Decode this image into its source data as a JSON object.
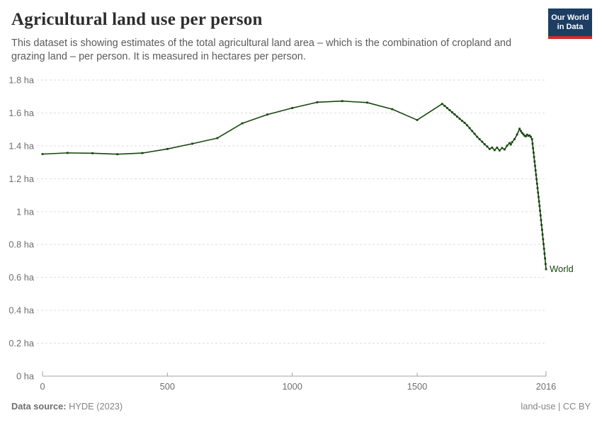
{
  "header": {
    "title": "Agricultural land use per person",
    "subtitle": "This dataset is showing estimates of the total agricultural land area – which is the combination of cropland and grazing land – per person. It is measured in hectares per person.",
    "logo": {
      "line1": "Our World",
      "line2": "in Data",
      "bg_color": "#1d3d63",
      "stripe_color": "#cf2c2c"
    }
  },
  "chart_data": {
    "type": "line",
    "title": "Agricultural land use per person",
    "unit": "hectares per person",
    "xlim": [
      0,
      2016
    ],
    "ylim": [
      0,
      1.8
    ],
    "grid": "horizontal-dashed",
    "grid_color": "#dddddd",
    "axis_color": "#a3a3a3",
    "x_ticks": [
      {
        "v": 0,
        "label": "0"
      },
      {
        "v": 500,
        "label": "500"
      },
      {
        "v": 1000,
        "label": "1000"
      },
      {
        "v": 1500,
        "label": "1500"
      },
      {
        "v": 2016,
        "label": "2016"
      }
    ],
    "y_ticks": [
      {
        "v": 0,
        "label": "0 ha"
      },
      {
        "v": 0.2,
        "label": "0.2 ha"
      },
      {
        "v": 0.4,
        "label": "0.4 ha"
      },
      {
        "v": 0.6,
        "label": "0.6 ha"
      },
      {
        "v": 0.8,
        "label": "0.8 ha"
      },
      {
        "v": 1,
        "label": "1 ha"
      },
      {
        "v": 1.2,
        "label": "1.2 ha"
      },
      {
        "v": 1.4,
        "label": "1.4 ha"
      },
      {
        "v": 1.6,
        "label": "1.6 ha"
      },
      {
        "v": 1.8,
        "label": "1.8 ha"
      }
    ],
    "series": [
      {
        "name": "World",
        "color": "#18470f",
        "points": [
          [
            0,
            1.35
          ],
          [
            100,
            1.357
          ],
          [
            200,
            1.355
          ],
          [
            300,
            1.349
          ],
          [
            400,
            1.356
          ],
          [
            500,
            1.381
          ],
          [
            600,
            1.413
          ],
          [
            700,
            1.447
          ],
          [
            800,
            1.537
          ],
          [
            900,
            1.59
          ],
          [
            1000,
            1.63
          ],
          [
            1100,
            1.665
          ],
          [
            1200,
            1.672
          ],
          [
            1300,
            1.663
          ],
          [
            1400,
            1.623
          ],
          [
            1500,
            1.557
          ],
          [
            1600,
            1.655
          ],
          [
            1610,
            1.643
          ],
          [
            1620,
            1.63
          ],
          [
            1630,
            1.617
          ],
          [
            1640,
            1.604
          ],
          [
            1650,
            1.591
          ],
          [
            1660,
            1.578
          ],
          [
            1670,
            1.565
          ],
          [
            1680,
            1.552
          ],
          [
            1690,
            1.54
          ],
          [
            1700,
            1.525
          ],
          [
            1710,
            1.508
          ],
          [
            1720,
            1.49
          ],
          [
            1730,
            1.473
          ],
          [
            1740,
            1.455
          ],
          [
            1750,
            1.44
          ],
          [
            1760,
            1.425
          ],
          [
            1770,
            1.41
          ],
          [
            1780,
            1.396
          ],
          [
            1790,
            1.381
          ],
          [
            1800,
            1.389
          ],
          [
            1810,
            1.374
          ],
          [
            1820,
            1.389
          ],
          [
            1830,
            1.372
          ],
          [
            1840,
            1.387
          ],
          [
            1850,
            1.378
          ],
          [
            1860,
            1.401
          ],
          [
            1870,
            1.417
          ],
          [
            1875,
            1.408
          ],
          [
            1880,
            1.422
          ],
          [
            1890,
            1.441
          ],
          [
            1900,
            1.469
          ],
          [
            1910,
            1.504
          ],
          [
            1915,
            1.49
          ],
          [
            1920,
            1.479
          ],
          [
            1925,
            1.47
          ],
          [
            1930,
            1.462
          ],
          [
            1935,
            1.458
          ],
          [
            1940,
            1.468
          ],
          [
            1945,
            1.461
          ],
          [
            1950,
            1.463
          ],
          [
            1955,
            1.455
          ],
          [
            1960,
            1.44
          ],
          [
            1962,
            1.413
          ],
          [
            1964,
            1.386
          ],
          [
            1966,
            1.359
          ],
          [
            1968,
            1.332
          ],
          [
            1970,
            1.305
          ],
          [
            1972,
            1.278
          ],
          [
            1974,
            1.251
          ],
          [
            1976,
            1.224
          ],
          [
            1978,
            1.197
          ],
          [
            1980,
            1.17
          ],
          [
            1982,
            1.143
          ],
          [
            1984,
            1.116
          ],
          [
            1986,
            1.089
          ],
          [
            1988,
            1.062
          ],
          [
            1990,
            1.035
          ],
          [
            1992,
            1.006
          ],
          [
            1994,
            0.977
          ],
          [
            1996,
            0.948
          ],
          [
            1998,
            0.919
          ],
          [
            2000,
            0.89
          ],
          [
            2002,
            0.861
          ],
          [
            2004,
            0.832
          ],
          [
            2006,
            0.803
          ],
          [
            2008,
            0.774
          ],
          [
            2010,
            0.745
          ],
          [
            2012,
            0.716
          ],
          [
            2014,
            0.682
          ],
          [
            2016,
            0.65
          ]
        ]
      }
    ]
  },
  "footer": {
    "datasource_label": "Data source:",
    "datasource_value": " HYDE (2023)",
    "right_text": "land-use | CC BY"
  }
}
